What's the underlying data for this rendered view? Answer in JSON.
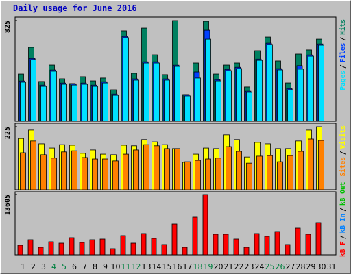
{
  "title": "Daily usage for June 2016",
  "legend_separator": "/",
  "chart_data": [
    {
      "type": "bar",
      "ylim": [
        0,
        825
      ],
      "yticks": [
        825
      ],
      "series": [
        {
          "name": "Hits",
          "color": "#008060",
          "values": [
            387,
            606,
            326,
            460,
            348,
            309,
            365,
            331,
            354,
            258,
            741,
            393,
            763,
            544,
            382,
            825,
            219,
            477,
            819,
            387,
            460,
            477,
            281,
            578,
            690,
            494,
            314,
            550,
            584,
            673,
            null
          ]
        },
        {
          "name": "Files",
          "color": "#0040ff",
          "values": [
            330,
            515,
            296,
            420,
            313,
            307,
            313,
            296,
            324,
            223,
            695,
            347,
            487,
            487,
            347,
            459,
            218,
            404,
            746,
            341,
            425,
            442,
            246,
            509,
            639,
            431,
            268,
            455,
            543,
            633,
            null
          ]
        },
        {
          "name": "Pages",
          "color": "#00e0ff",
          "values": [
            320,
            505,
            286,
            410,
            303,
            297,
            303,
            286,
            314,
            213,
            685,
            337,
            477,
            477,
            337,
            449,
            208,
            354,
            673,
            331,
            415,
            432,
            236,
            499,
            629,
            421,
            258,
            427,
            533,
            623,
            null
          ]
        }
      ]
    },
    {
      "type": "bar",
      "ylim": [
        0,
        225
      ],
      "yticks": [
        225
      ],
      "series": [
        {
          "name": "Visits",
          "color": "#ffff00",
          "values": [
            183,
            213,
            164,
            149,
            161,
            159,
            130,
            142,
            127,
            125,
            159,
            157,
            179,
            171,
            161,
            147,
            98,
            127,
            149,
            147,
            196,
            179,
            117,
            169,
            164,
            147,
            147,
            174,
            213,
            225,
            null
          ]
        },
        {
          "name": "Sites",
          "color": "#ff8000",
          "values": [
            132,
            174,
            125,
            113,
            135,
            139,
            115,
            110,
            110,
            103,
            127,
            142,
            161,
            157,
            147,
            147,
            100,
            105,
            110,
            113,
            154,
            137,
            95,
            120,
            122,
            100,
            122,
            137,
            181,
            176,
            null
          ]
        }
      ]
    },
    {
      "type": "bar",
      "ylim": [
        0,
        13605
      ],
      "yticks": [
        13605
      ],
      "categories": [
        "1",
        "2",
        "3",
        "4",
        "5",
        "6",
        "7",
        "8",
        "9",
        "10",
        "11",
        "12",
        "13",
        "14",
        "15",
        "16",
        "17",
        "18",
        "19",
        "20",
        "21",
        "22",
        "23",
        "24",
        "25",
        "26",
        "27",
        "28",
        "29",
        "30",
        "31"
      ],
      "category_colors": [
        "#000000",
        "#000000",
        "#000000",
        "#008040",
        "#008040",
        "#000000",
        "#000000",
        "#000000",
        "#000000",
        "#000000",
        "#008040",
        "#008040",
        "#000000",
        "#000000",
        "#000000",
        "#000000",
        "#000000",
        "#008040",
        "#008040",
        "#000000",
        "#000000",
        "#000000",
        "#000000",
        "#000000",
        "#008040",
        "#008040",
        "#000000",
        "#000000",
        "#000000",
        "#000000",
        "#000000"
      ],
      "series": [
        {
          "name": "kB F",
          "color": "#ff0000",
          "values": [
            2164,
            3401,
            1701,
            2937,
            2628,
            3865,
            2783,
            3401,
            3556,
            1391,
            4329,
            2628,
            4793,
            3710,
            2319,
            6957,
            1701,
            8503,
            13605,
            4638,
            4638,
            3556,
            1701,
            4793,
            4174,
            5256,
            2319,
            6029,
            4638,
            7266,
            null
          ]
        },
        {
          "name": "kB In",
          "color": "#0080ff",
          "values": [
            null,
            null,
            null,
            null,
            null,
            null,
            null,
            null,
            null,
            null,
            null,
            null,
            null,
            null,
            null,
            null,
            null,
            null,
            null,
            null,
            null,
            null,
            null,
            null,
            null,
            null,
            null,
            null,
            null,
            null,
            null
          ]
        },
        {
          "name": "kB Out",
          "color": "#00c000",
          "values": [
            null,
            null,
            null,
            null,
            null,
            null,
            null,
            null,
            null,
            null,
            null,
            null,
            null,
            null,
            null,
            null,
            null,
            null,
            null,
            null,
            null,
            null,
            null,
            null,
            null,
            null,
            null,
            null,
            null,
            null,
            null
          ]
        }
      ]
    }
  ]
}
